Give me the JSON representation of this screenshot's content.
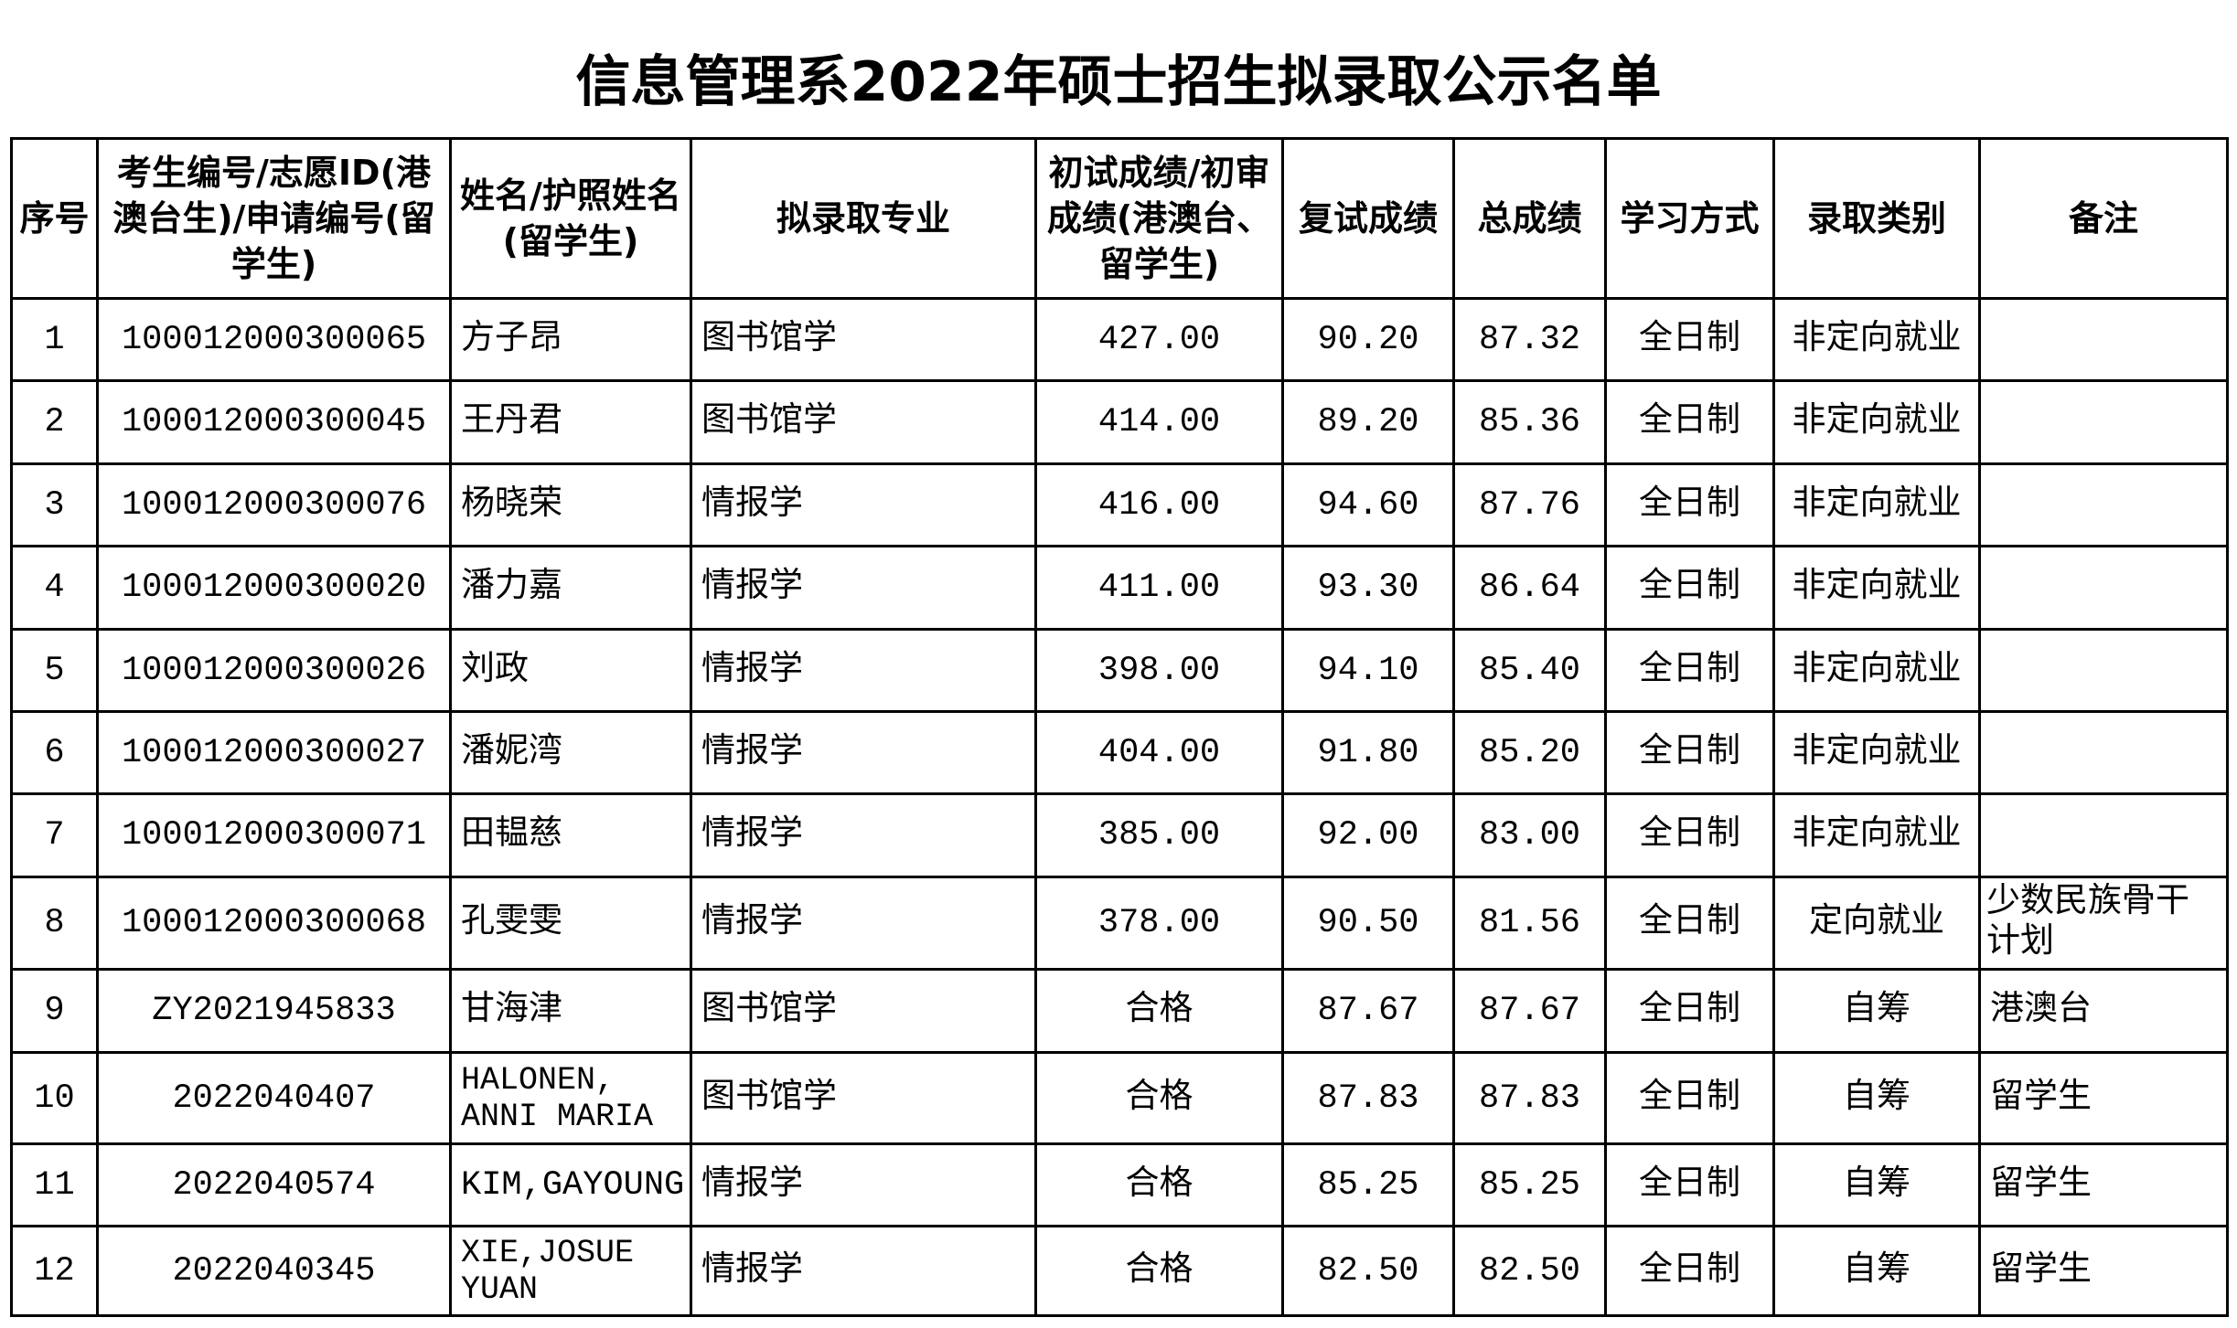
{
  "title": "信息管理系2022年硕士招生拟录取公示名单",
  "headers": [
    "序号",
    "考生编号/志愿ID(港澳台生)/申请编号(留学生)",
    "姓名/护照姓名(留学生)",
    "拟录取专业",
    "初试成绩/初审成绩(港澳台、留学生)",
    "复试成绩",
    "总成绩",
    "学习方式",
    "录取类别",
    "备注"
  ],
  "rows": [
    {
      "no": "1",
      "id": "100012000300065",
      "name": "方子昂",
      "major": "图书馆学",
      "initial": "427.00",
      "retest": "90.20",
      "total": "87.32",
      "mode": "全日制",
      "category": "非定向就业",
      "remark": ""
    },
    {
      "no": "2",
      "id": "100012000300045",
      "name": "王丹君",
      "major": "图书馆学",
      "initial": "414.00",
      "retest": "89.20",
      "total": "85.36",
      "mode": "全日制",
      "category": "非定向就业",
      "remark": ""
    },
    {
      "no": "3",
      "id": "100012000300076",
      "name": "杨晓荣",
      "major": "情报学",
      "initial": "416.00",
      "retest": "94.60",
      "total": "87.76",
      "mode": "全日制",
      "category": "非定向就业",
      "remark": ""
    },
    {
      "no": "4",
      "id": "100012000300020",
      "name": "潘力嘉",
      "major": "情报学",
      "initial": "411.00",
      "retest": "93.30",
      "total": "86.64",
      "mode": "全日制",
      "category": "非定向就业",
      "remark": ""
    },
    {
      "no": "5",
      "id": "100012000300026",
      "name": "刘政",
      "major": "情报学",
      "initial": "398.00",
      "retest": "94.10",
      "total": "85.40",
      "mode": "全日制",
      "category": "非定向就业",
      "remark": ""
    },
    {
      "no": "6",
      "id": "100012000300027",
      "name": "潘妮湾",
      "major": "情报学",
      "initial": "404.00",
      "retest": "91.80",
      "total": "85.20",
      "mode": "全日制",
      "category": "非定向就业",
      "remark": ""
    },
    {
      "no": "7",
      "id": "100012000300071",
      "name": "田韫慈",
      "major": "情报学",
      "initial": "385.00",
      "retest": "92.00",
      "total": "83.00",
      "mode": "全日制",
      "category": "非定向就业",
      "remark": ""
    },
    {
      "no": "8",
      "id": "100012000300068",
      "name": "孔雯雯",
      "major": "情报学",
      "initial": "378.00",
      "retest": "90.50",
      "total": "81.56",
      "mode": "全日制",
      "category": "定向就业",
      "remark": "少数民族骨干计划"
    },
    {
      "no": "9",
      "id": "ZY2021945833",
      "name": "甘海津",
      "major": "图书馆学",
      "initial": "合格",
      "retest": "87.67",
      "total": "87.67",
      "mode": "全日制",
      "category": "自筹",
      "remark": "港澳台"
    },
    {
      "no": "10",
      "id": "2022040407",
      "name": "HALONEN, ANNI MARIA",
      "major": "图书馆学",
      "initial": "合格",
      "retest": "87.83",
      "total": "87.83",
      "mode": "全日制",
      "category": "自筹",
      "remark": "留学生"
    },
    {
      "no": "11",
      "id": "2022040574",
      "name": "KIM,GAYOUNG",
      "major": "情报学",
      "initial": "合格",
      "retest": "85.25",
      "total": "85.25",
      "mode": "全日制",
      "category": "自筹",
      "remark": "留学生"
    },
    {
      "no": "12",
      "id": "2022040345",
      "name": "XIE,JOSUE YUAN",
      "major": "情报学",
      "initial": "合格",
      "retest": "82.50",
      "total": "82.50",
      "mode": "全日制",
      "category": "自筹",
      "remark": "留学生"
    }
  ]
}
